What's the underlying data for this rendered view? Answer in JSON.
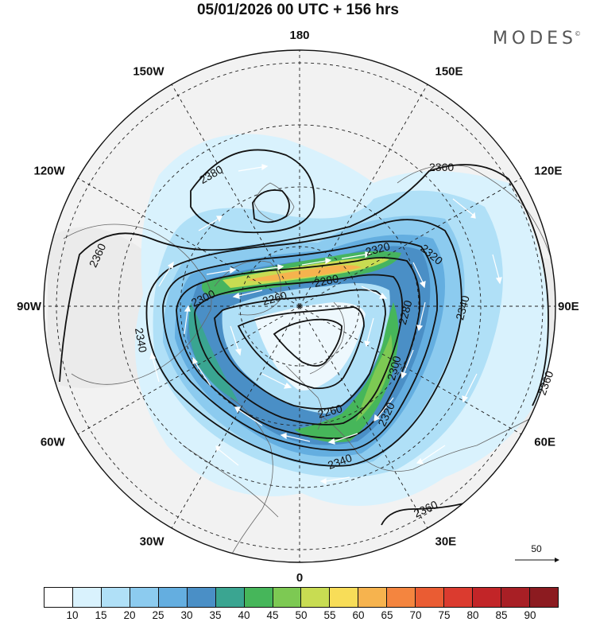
{
  "header": {
    "title": "05/01/2026  00 UTC  + 156 hrs",
    "brand": "MODES",
    "brand_mark": "©"
  },
  "map": {
    "projection": "north-polar-stereographic",
    "longitude_labels": [
      {
        "text": "180",
        "lon": 180
      },
      {
        "text": "150E",
        "lon": 150
      },
      {
        "text": "120E",
        "lon": 120
      },
      {
        "text": "90E",
        "lon": 90
      },
      {
        "text": "60E",
        "lon": 60
      },
      {
        "text": "30E",
        "lon": 30
      },
      {
        "text": "0",
        "lon": 0
      },
      {
        "text": "30W",
        "lon": -30
      },
      {
        "text": "60W",
        "lon": -60
      },
      {
        "text": "90W",
        "lon": -90
      },
      {
        "text": "120W",
        "lon": -120
      },
      {
        "text": "150W",
        "lon": -150
      }
    ],
    "contour_labels": [
      "2380",
      "2360",
      "2360",
      "2320",
      "2320",
      "2280",
      "2300",
      "2260",
      "2340",
      "2340",
      "2280",
      "2300",
      "2260",
      "2320",
      "2340",
      "2360",
      "2360",
      "2340"
    ],
    "wind_speed_shading": "10-90 color fill",
    "vector_reference": "50"
  },
  "colorbar": {
    "labels": [
      "10",
      "15",
      "20",
      "25",
      "30",
      "35",
      "40",
      "45",
      "50",
      "55",
      "60",
      "65",
      "70",
      "75",
      "80",
      "85",
      "90"
    ],
    "colors": [
      "#ffffff",
      "#d9f2fd",
      "#b0e0f7",
      "#8ccbef",
      "#64aee0",
      "#4a8fc6",
      "#3aa591",
      "#46b65a",
      "#7dc953",
      "#c8dc52",
      "#f8dd58",
      "#f6b34e",
      "#f4853f",
      "#ea5c33",
      "#db3b2f",
      "#c22528",
      "#a81f25",
      "#8c1b20"
    ]
  }
}
